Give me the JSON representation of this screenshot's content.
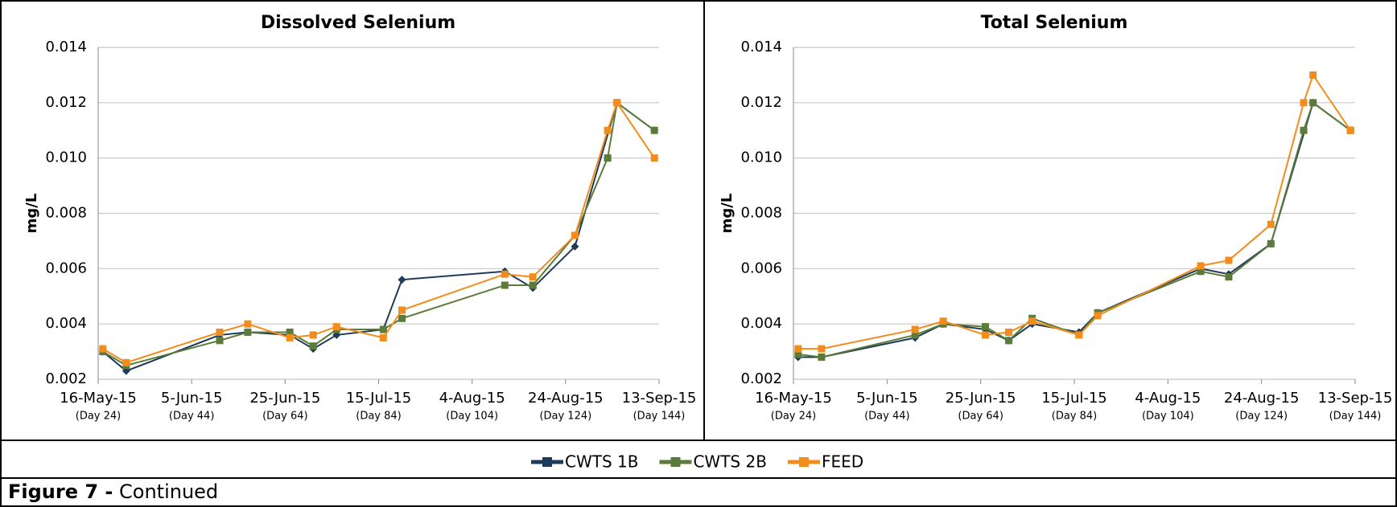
{
  "chart_data": [
    {
      "type": "line",
      "title": "Dissolved Selenium",
      "ylabel": "mg/L",
      "xlim": [
        24,
        144
      ],
      "ylim": [
        0.002,
        0.014
      ],
      "xticks": [
        {
          "value": 24,
          "label": "16-May-15",
          "sublabel": "(Day 24)"
        },
        {
          "value": 44,
          "label": "5-Jun-15",
          "sublabel": "(Day 44)"
        },
        {
          "value": 64,
          "label": "25-Jun-15",
          "sublabel": "(Day 64)"
        },
        {
          "value": 84,
          "label": "15-Jul-15",
          "sublabel": "(Day 84)"
        },
        {
          "value": 104,
          "label": "4-Aug-15",
          "sublabel": "(Day 104)"
        },
        {
          "value": 124,
          "label": "24-Aug-15",
          "sublabel": "(Day 124)"
        },
        {
          "value": 144,
          "label": "13-Sep-15",
          "sublabel": "(Day 144)"
        }
      ],
      "yticks": [
        0.002,
        0.004,
        0.006,
        0.008,
        {
          "value": 0.01,
          "label": "0.010"
        },
        0.012,
        0.014
      ],
      "grid": true,
      "series": [
        {
          "name": "CWTS 1B",
          "color": "#1f3b5a",
          "marker": "diamond",
          "x": [
            25,
            30,
            50,
            56,
            65,
            70,
            75,
            85,
            89,
            111,
            117,
            126,
            135,
            143
          ],
          "values": [
            0.003,
            0.0023,
            0.0036,
            0.0037,
            0.0036,
            0.0031,
            0.0036,
            0.0038,
            0.0056,
            0.0059,
            0.0053,
            0.0068,
            0.012,
            0.011
          ]
        },
        {
          "name": "CWTS 2B",
          "color": "#5b7b3a",
          "marker": "square",
          "x": [
            25,
            30,
            50,
            56,
            65,
            70,
            75,
            85,
            89,
            111,
            117,
            126,
            133,
            135,
            143
          ],
          "values": [
            0.003,
            0.0025,
            0.0034,
            0.0037,
            0.0037,
            0.0032,
            0.0038,
            0.0038,
            0.0042,
            0.0054,
            0.0054,
            0.0072,
            0.01,
            0.012,
            0.011
          ]
        },
        {
          "name": "FEED",
          "color": "#f28c1c",
          "marker": "square",
          "x": [
            25,
            30,
            50,
            56,
            65,
            70,
            75,
            85,
            89,
            111,
            117,
            126,
            133,
            135,
            143
          ],
          "values": [
            0.0031,
            0.0026,
            0.0037,
            0.004,
            0.0035,
            0.0036,
            0.0039,
            0.0035,
            0.0045,
            0.0058,
            0.0057,
            0.0072,
            0.011,
            0.012,
            0.01
          ]
        }
      ]
    },
    {
      "type": "line",
      "title": "Total Selenium",
      "ylabel": "mg/L",
      "xlim": [
        24,
        144
      ],
      "ylim": [
        0.002,
        0.014
      ],
      "xticks": [
        {
          "value": 24,
          "label": "16-May-15",
          "sublabel": "(Day 24)"
        },
        {
          "value": 44,
          "label": "5-Jun-15",
          "sublabel": "(Day 44)"
        },
        {
          "value": 64,
          "label": "25-Jun-15",
          "sublabel": "(Day 64)"
        },
        {
          "value": 84,
          "label": "15-Jul-15",
          "sublabel": "(Day 84)"
        },
        {
          "value": 104,
          "label": "4-Aug-15",
          "sublabel": "(Day 104)"
        },
        {
          "value": 124,
          "label": "24-Aug-15",
          "sublabel": "(Day 124)"
        },
        {
          "value": 144,
          "label": "13-Sep-15",
          "sublabel": "(Day 144)"
        }
      ],
      "yticks": [
        0.002,
        0.004,
        0.006,
        0.008,
        {
          "value": 0.01,
          "label": "0.010"
        },
        0.012,
        0.014
      ],
      "grid": true,
      "series": [
        {
          "name": "CWTS 1B",
          "color": "#1f3b5a",
          "marker": "diamond",
          "x": [
            25,
            30,
            50,
            56,
            65,
            70,
            75,
            85,
            89,
            111,
            117,
            126,
            135,
            143
          ],
          "values": [
            0.0028,
            0.0028,
            0.0035,
            0.004,
            0.0038,
            0.0034,
            0.004,
            0.0037,
            0.0044,
            0.006,
            0.0058,
            0.0069,
            0.012,
            0.011
          ]
        },
        {
          "name": "CWTS 2B",
          "color": "#5b7b3a",
          "marker": "square",
          "x": [
            25,
            30,
            50,
            56,
            65,
            70,
            75,
            85,
            89,
            111,
            117,
            126,
            133,
            135,
            143
          ],
          "values": [
            0.0029,
            0.0028,
            0.0036,
            0.004,
            0.0039,
            0.0034,
            0.0042,
            0.0036,
            0.0044,
            0.0059,
            0.0057,
            0.0069,
            0.011,
            0.012,
            0.011
          ]
        },
        {
          "name": "FEED",
          "color": "#f28c1c",
          "marker": "square",
          "x": [
            25,
            30,
            50,
            56,
            65,
            70,
            75,
            85,
            89,
            111,
            117,
            126,
            133,
            135,
            143
          ],
          "values": [
            0.0031,
            0.0031,
            0.0038,
            0.0041,
            0.0036,
            0.0037,
            0.0041,
            0.0036,
            0.0043,
            0.0061,
            0.0063,
            0.0076,
            0.012,
            0.013,
            0.011
          ]
        }
      ]
    }
  ],
  "caption": {
    "label": "Figure 7 -",
    "text": "Continued"
  }
}
